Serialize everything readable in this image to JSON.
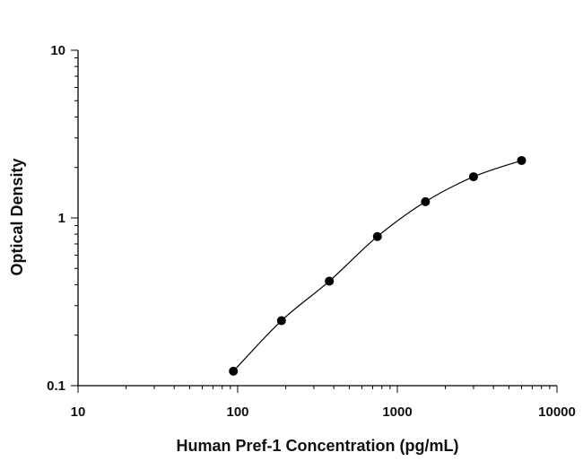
{
  "chart_data": {
    "type": "scatter",
    "xlabel": "Human Pref-1 Concentration (pg/mL)",
    "ylabel": "Optical Density",
    "x_scale": "log",
    "y_scale": "log",
    "xlim": [
      10,
      10000
    ],
    "ylim": [
      0.1,
      10
    ],
    "x_ticks": [
      "10",
      "100",
      "1000",
      "10000"
    ],
    "y_ticks": [
      "0.1",
      "1",
      "10"
    ],
    "grid": false,
    "series": [
      {
        "points": [
          {
            "x": 94,
            "y": 0.122
          },
          {
            "x": 188,
            "y": 0.244
          },
          {
            "x": 375,
            "y": 0.42
          },
          {
            "x": 750,
            "y": 0.775
          },
          {
            "x": 1500,
            "y": 1.25
          },
          {
            "x": 3000,
            "y": 1.76
          },
          {
            "x": 6000,
            "y": 2.2
          }
        ],
        "fit": "curve"
      }
    ],
    "colors": {
      "marker": "#000000",
      "line": "#000000",
      "axis": "#000000"
    }
  }
}
